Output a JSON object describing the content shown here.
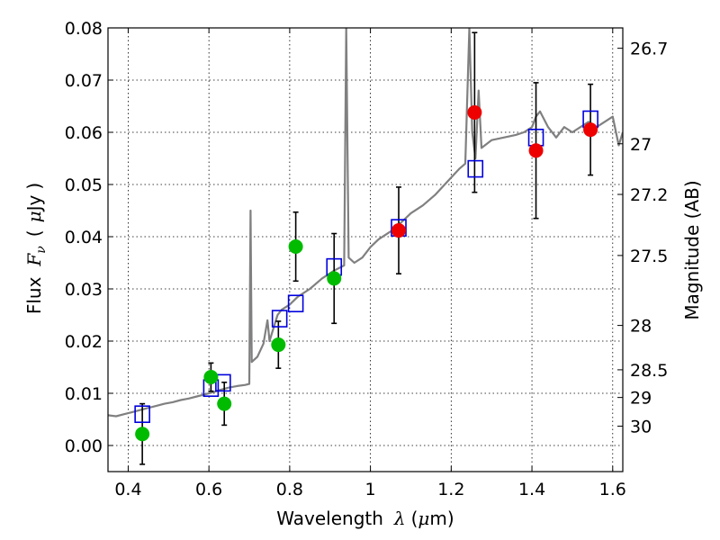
{
  "chart_data": {
    "type": "scatter",
    "xlabel": "Wavelength",
    "xlabel_symbol": "λ",
    "xlabel_unit_open": "(",
    "xlabel_unit_mu": "μ",
    "xlabel_unit_rest": "m)",
    "ylabel": "Flux",
    "ylabel_symbol": "F",
    "ylabel_sub": "ν",
    "ylabel_unit_open": "(",
    "ylabel_unit_mu": "μ",
    "ylabel_unit_rest": "Jy",
    "ylabel_unit_close": ")",
    "y2label": "Magnitude (AB)",
    "xlim": [
      0.35,
      1.625
    ],
    "ylim": [
      -0.005,
      0.08
    ],
    "grid": true,
    "x_ticks": [
      {
        "value": 0.4,
        "label": "0.4"
      },
      {
        "value": 0.6,
        "label": "0.6"
      },
      {
        "value": 0.8,
        "label": "0.8"
      },
      {
        "value": 1.0,
        "label": "1"
      },
      {
        "value": 1.2,
        "label": "1.2"
      },
      {
        "value": 1.4,
        "label": "1.4"
      },
      {
        "value": 1.6,
        "label": "1.6"
      }
    ],
    "y_ticks": [
      {
        "value": 0.0,
        "label": "0.00"
      },
      {
        "value": 0.01,
        "label": "0.01"
      },
      {
        "value": 0.02,
        "label": "0.02"
      },
      {
        "value": 0.03,
        "label": "0.03"
      },
      {
        "value": 0.04,
        "label": "0.04"
      },
      {
        "value": 0.05,
        "label": "0.05"
      },
      {
        "value": 0.06,
        "label": "0.06"
      },
      {
        "value": 0.07,
        "label": "0.07"
      },
      {
        "value": 0.08,
        "label": "0.08"
      }
    ],
    "y2_ticks": [
      {
        "flux": 0.0761,
        "label": "26.7"
      },
      {
        "flux": 0.0578,
        "label": "27"
      },
      {
        "flux": 0.0481,
        "label": "27.2"
      },
      {
        "flux": 0.0364,
        "label": "27.5"
      },
      {
        "flux": 0.023,
        "label": "28"
      },
      {
        "flux": 0.0145,
        "label": "28.5"
      },
      {
        "flux": 0.0092,
        "label": "29"
      },
      {
        "flux": 0.0037,
        "label": "30"
      }
    ],
    "series": [
      {
        "kind": "line",
        "color": "#808080",
        "points": [
          [
            0.35,
            0.0058
          ],
          [
            0.37,
            0.0056
          ],
          [
            0.39,
            0.006
          ],
          [
            0.41,
            0.0064
          ],
          [
            0.43,
            0.0068
          ],
          [
            0.45,
            0.0072
          ],
          [
            0.47,
            0.0076
          ],
          [
            0.49,
            0.008
          ],
          [
            0.51,
            0.0083
          ],
          [
            0.53,
            0.0087
          ],
          [
            0.55,
            0.009
          ],
          [
            0.57,
            0.0094
          ],
          [
            0.59,
            0.0098
          ],
          [
            0.61,
            0.0102
          ],
          [
            0.63,
            0.0107
          ],
          [
            0.65,
            0.0111
          ],
          [
            0.67,
            0.0114
          ],
          [
            0.69,
            0.0116
          ],
          [
            0.7,
            0.0118
          ],
          [
            0.703,
            0.045
          ],
          [
            0.706,
            0.016
          ],
          [
            0.72,
            0.017
          ],
          [
            0.735,
            0.0195
          ],
          [
            0.745,
            0.024
          ],
          [
            0.75,
            0.02
          ],
          [
            0.76,
            0.0225
          ],
          [
            0.77,
            0.025
          ],
          [
            0.78,
            0.026
          ],
          [
            0.8,
            0.027
          ],
          [
            0.82,
            0.0285
          ],
          [
            0.85,
            0.03
          ],
          [
            0.88,
            0.032
          ],
          [
            0.91,
            0.0335
          ],
          [
            0.935,
            0.0345
          ],
          [
            0.94,
            0.08
          ],
          [
            0.946,
            0.036
          ],
          [
            0.96,
            0.035
          ],
          [
            0.98,
            0.036
          ],
          [
            1.0,
            0.038
          ],
          [
            1.02,
            0.0395
          ],
          [
            1.05,
            0.041
          ],
          [
            1.08,
            0.043
          ],
          [
            1.1,
            0.0445
          ],
          [
            1.13,
            0.046
          ],
          [
            1.16,
            0.048
          ],
          [
            1.19,
            0.0505
          ],
          [
            1.22,
            0.053
          ],
          [
            1.235,
            0.054
          ],
          [
            1.245,
            0.08
          ],
          [
            1.252,
            0.06
          ],
          [
            1.26,
            0.055
          ],
          [
            1.268,
            0.068
          ],
          [
            1.275,
            0.057
          ],
          [
            1.3,
            0.0585
          ],
          [
            1.33,
            0.059
          ],
          [
            1.36,
            0.0595
          ],
          [
            1.38,
            0.06
          ],
          [
            1.4,
            0.061
          ],
          [
            1.41,
            0.063
          ],
          [
            1.42,
            0.064
          ],
          [
            1.44,
            0.061
          ],
          [
            1.46,
            0.059
          ],
          [
            1.48,
            0.061
          ],
          [
            1.5,
            0.06
          ],
          [
            1.52,
            0.061
          ],
          [
            1.54,
            0.062
          ],
          [
            1.56,
            0.061
          ],
          [
            1.58,
            0.062
          ],
          [
            1.6,
            0.063
          ],
          [
            1.615,
            0.0575
          ],
          [
            1.625,
            0.06
          ]
        ]
      },
      {
        "kind": "squares",
        "color": "#0000dd",
        "points": [
          [
            0.435,
            0.006
          ],
          [
            0.605,
            0.011
          ],
          [
            0.635,
            0.012
          ],
          [
            0.775,
            0.0243
          ],
          [
            0.815,
            0.0272
          ],
          [
            0.91,
            0.0342
          ],
          [
            1.07,
            0.0417
          ],
          [
            1.26,
            0.053
          ],
          [
            1.41,
            0.059
          ],
          [
            1.545,
            0.0625
          ]
        ]
      },
      {
        "kind": "points",
        "color": "#00bb00",
        "points": [
          {
            "x": 0.435,
            "y": 0.0022,
            "err": 0.0058
          },
          {
            "x": 0.605,
            "y": 0.0131,
            "err": 0.0027
          },
          {
            "x": 0.638,
            "y": 0.008,
            "err": 0.0041
          },
          {
            "x": 0.772,
            "y": 0.0193,
            "err": 0.0045
          },
          {
            "x": 0.815,
            "y": 0.0381,
            "err": 0.0066
          },
          {
            "x": 0.91,
            "y": 0.032,
            "err": 0.0086
          }
        ]
      },
      {
        "kind": "points",
        "color": "#ee0000",
        "points": [
          {
            "x": 1.07,
            "y": 0.0412,
            "err": 0.0083
          },
          {
            "x": 1.258,
            "y": 0.0638,
            "err": 0.0153
          },
          {
            "x": 1.41,
            "y": 0.0565,
            "err": 0.013
          },
          {
            "x": 1.545,
            "y": 0.0605,
            "err": 0.0087
          }
        ]
      }
    ]
  }
}
